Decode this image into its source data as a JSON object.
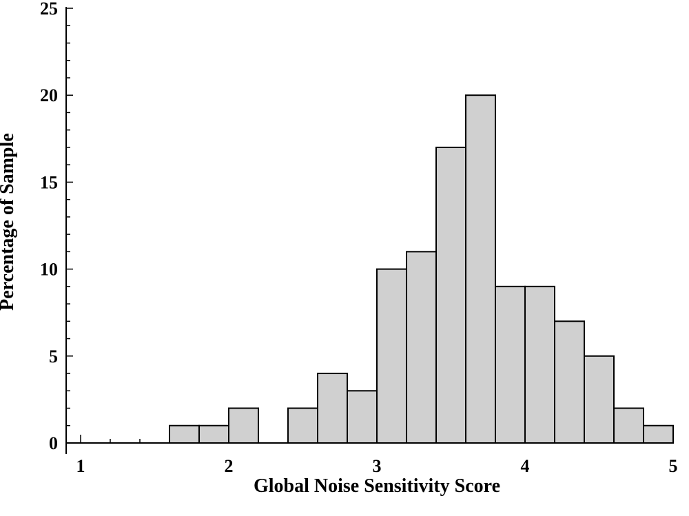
{
  "chart_data": {
    "type": "bar",
    "title": "",
    "xlabel": "Global Noise Sensitivity Score",
    "ylabel": "Percentage of Sample",
    "xlim": [
      1,
      5
    ],
    "ylim": [
      0,
      25
    ],
    "x_ticks": [
      1,
      2,
      3,
      4,
      5
    ],
    "y_ticks": [
      0,
      5,
      10,
      15,
      20,
      25
    ],
    "bin_width": 0.2,
    "bins": [
      {
        "start": 1.0,
        "value": 0
      },
      {
        "start": 1.2,
        "value": 0
      },
      {
        "start": 1.4,
        "value": 0
      },
      {
        "start": 1.6,
        "value": 1
      },
      {
        "start": 1.8,
        "value": 1
      },
      {
        "start": 2.0,
        "value": 2
      },
      {
        "start": 2.2,
        "value": 0
      },
      {
        "start": 2.4,
        "value": 2
      },
      {
        "start": 2.6,
        "value": 4
      },
      {
        "start": 2.8,
        "value": 3
      },
      {
        "start": 3.0,
        "value": 10
      },
      {
        "start": 3.2,
        "value": 11
      },
      {
        "start": 3.4,
        "value": 17
      },
      {
        "start": 3.6,
        "value": 20
      },
      {
        "start": 3.8,
        "value": 9
      },
      {
        "start": 4.0,
        "value": 9
      },
      {
        "start": 4.2,
        "value": 7
      },
      {
        "start": 4.4,
        "value": 5
      },
      {
        "start": 4.6,
        "value": 2
      },
      {
        "start": 4.8,
        "value": 1
      }
    ],
    "grid": false,
    "legend": "none",
    "bar_fill": "#d0d0d0",
    "bar_stroke": "#000000"
  }
}
